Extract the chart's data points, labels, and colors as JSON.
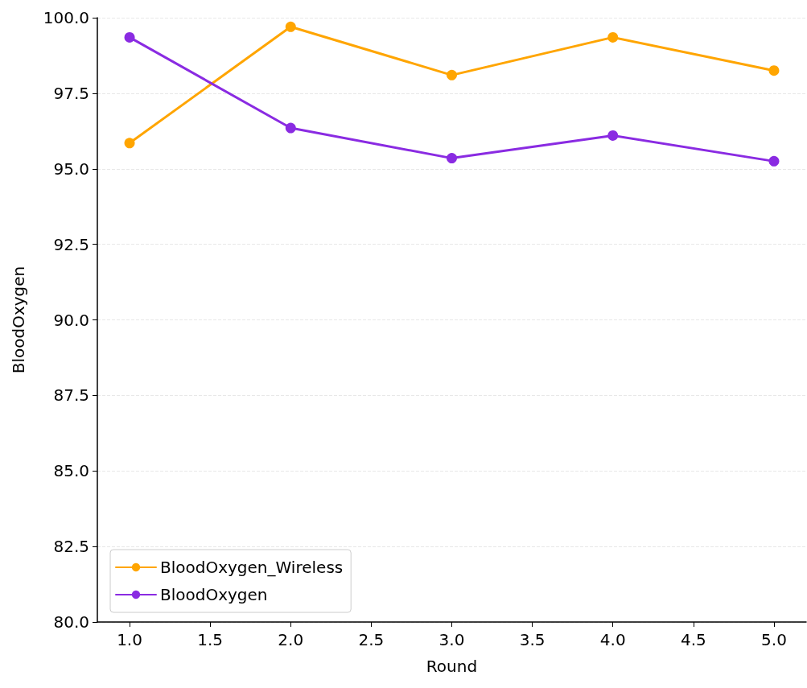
{
  "chart_data": {
    "type": "line",
    "xlabel": "Round",
    "ylabel": "BloodOxygen",
    "x": [
      1,
      2,
      3,
      4,
      5
    ],
    "series": [
      {
        "name": "BloodOxygen_Wireless",
        "color": "#ffa500",
        "values": [
          95.85,
          99.7,
          98.1,
          99.35,
          98.25
        ]
      },
      {
        "name": "BloodOxygen",
        "color": "#8a2be2",
        "values": [
          99.35,
          96.35,
          95.35,
          96.1,
          95.25
        ]
      }
    ],
    "xlim": [
      0.8,
      5.2
    ],
    "xticks": [
      {
        "value": 1,
        "label": "1.0"
      },
      {
        "value": 1.5,
        "label": "1.5"
      },
      {
        "value": 2,
        "label": "2.0"
      },
      {
        "value": 2.5,
        "label": "2.5"
      },
      {
        "value": 3,
        "label": "3.0"
      },
      {
        "value": 3.5,
        "label": "3.5"
      },
      {
        "value": 4,
        "label": "4.0"
      },
      {
        "value": 4.5,
        "label": "4.5"
      },
      {
        "value": 5,
        "label": "5.0"
      }
    ],
    "ylim": [
      80,
      100
    ],
    "yticks": [
      {
        "value": 80,
        "label": "80.0"
      },
      {
        "value": 82.5,
        "label": "82.5"
      },
      {
        "value": 85,
        "label": "85.0"
      },
      {
        "value": 87.5,
        "label": "87.5"
      },
      {
        "value": 90,
        "label": "90.0"
      },
      {
        "value": 92.5,
        "label": "92.5"
      },
      {
        "value": 95,
        "label": "95.0"
      },
      {
        "value": 97.5,
        "label": "97.5"
      },
      {
        "value": 100,
        "label": "100.0"
      }
    ],
    "grid": "y",
    "legend": "bottom left",
    "marker": "circle",
    "line_style": "solid"
  }
}
